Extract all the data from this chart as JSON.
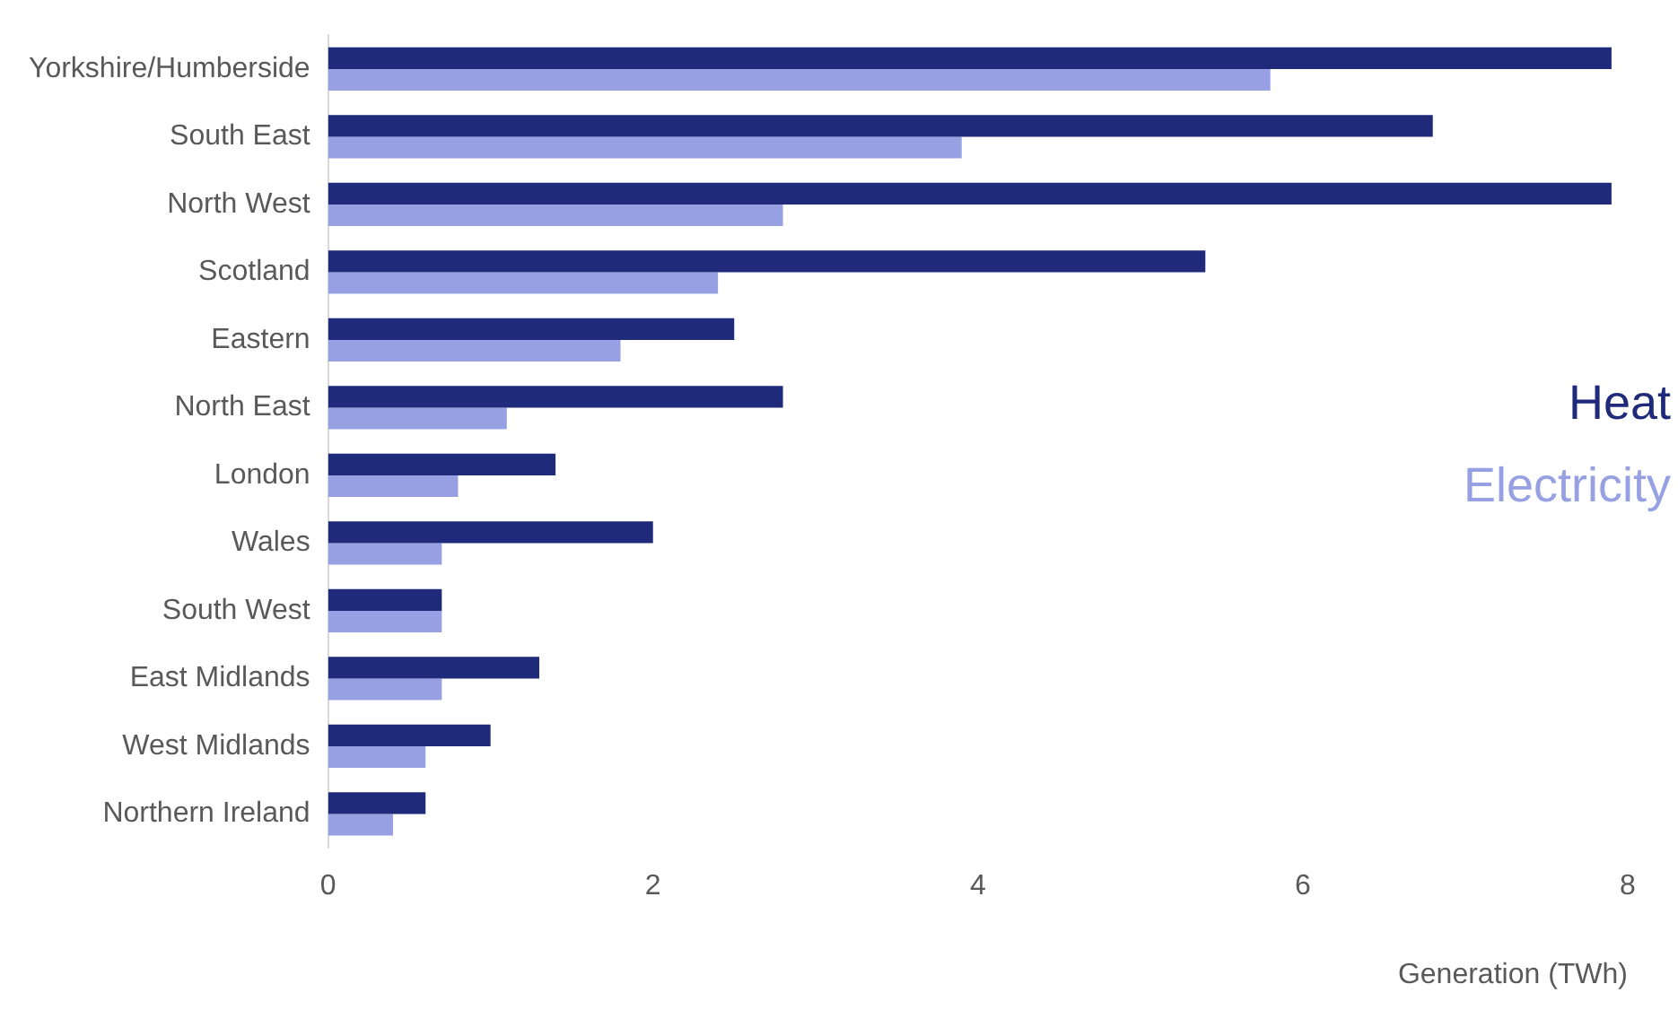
{
  "chart_data": {
    "type": "bar",
    "orientation": "horizontal",
    "xlabel": "Generation (TWh)",
    "categories": [
      "Yorkshire/Humberside",
      "South East",
      "North West",
      "Scotland",
      "Eastern",
      "North East",
      "London",
      "Wales",
      "South West",
      "East Midlands",
      "West Midlands",
      "Northern Ireland"
    ],
    "series": [
      {
        "name": "Heat",
        "color": "#1f2a7a",
        "values": [
          7.9,
          6.8,
          7.9,
          5.4,
          2.5,
          2.8,
          1.4,
          2.0,
          0.7,
          1.3,
          1.0,
          0.6
        ]
      },
      {
        "name": "Electricity",
        "color": "#97a0e3",
        "values": [
          5.8,
          3.9,
          2.8,
          2.4,
          1.8,
          1.1,
          0.8,
          0.7,
          0.7,
          0.7,
          0.6,
          0.4
        ]
      }
    ],
    "xlim": [
      0,
      8
    ],
    "xticks": [
      0,
      2,
      4,
      6,
      8
    ],
    "grid": false,
    "legend": "right"
  }
}
